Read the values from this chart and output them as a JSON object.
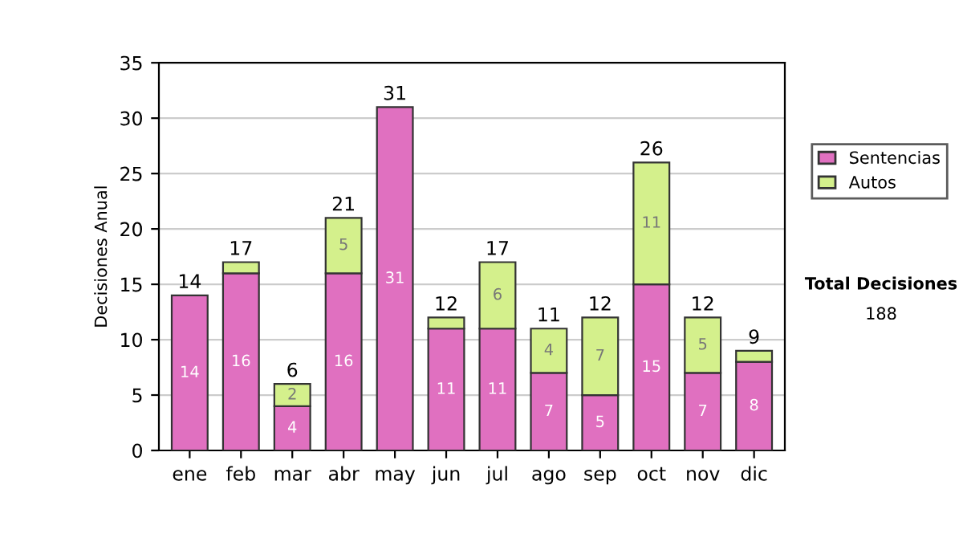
{
  "chart_data": {
    "type": "bar",
    "stacked": true,
    "ylabel": "Decisiones Anual",
    "categories": [
      "ene",
      "feb",
      "mar",
      "abr",
      "may",
      "jun",
      "jul",
      "ago",
      "sep",
      "oct",
      "nov",
      "dic"
    ],
    "series": [
      {
        "name": "Sentencias",
        "color": "#e070c0",
        "values": [
          14,
          16,
          4,
          16,
          31,
          11,
          11,
          7,
          5,
          15,
          7,
          8
        ],
        "value_labels": [
          "14",
          "16",
          "4",
          "16",
          "31",
          "11",
          "11",
          "7",
          "5",
          "15",
          "7",
          "8"
        ]
      },
      {
        "name": "Autos",
        "color": "#d4f08c",
        "values": [
          0,
          1,
          2,
          5,
          0,
          1,
          6,
          4,
          7,
          11,
          5,
          1
        ],
        "value_labels": [
          null,
          null,
          "2",
          "5",
          null,
          null,
          "6",
          "4",
          "7",
          "11",
          "5",
          null
        ]
      }
    ],
    "totals": [
      "14",
      "17",
      "6",
      "21",
      "31",
      "12",
      "17",
      "11",
      "12",
      "26",
      "12",
      "9"
    ],
    "ylim": [
      0,
      35
    ],
    "yticks": [
      0,
      5,
      10,
      15,
      20,
      25,
      30,
      35
    ],
    "grid": "y",
    "legend": "right",
    "annotations": [
      "Total Decisiones",
      "188"
    ]
  }
}
